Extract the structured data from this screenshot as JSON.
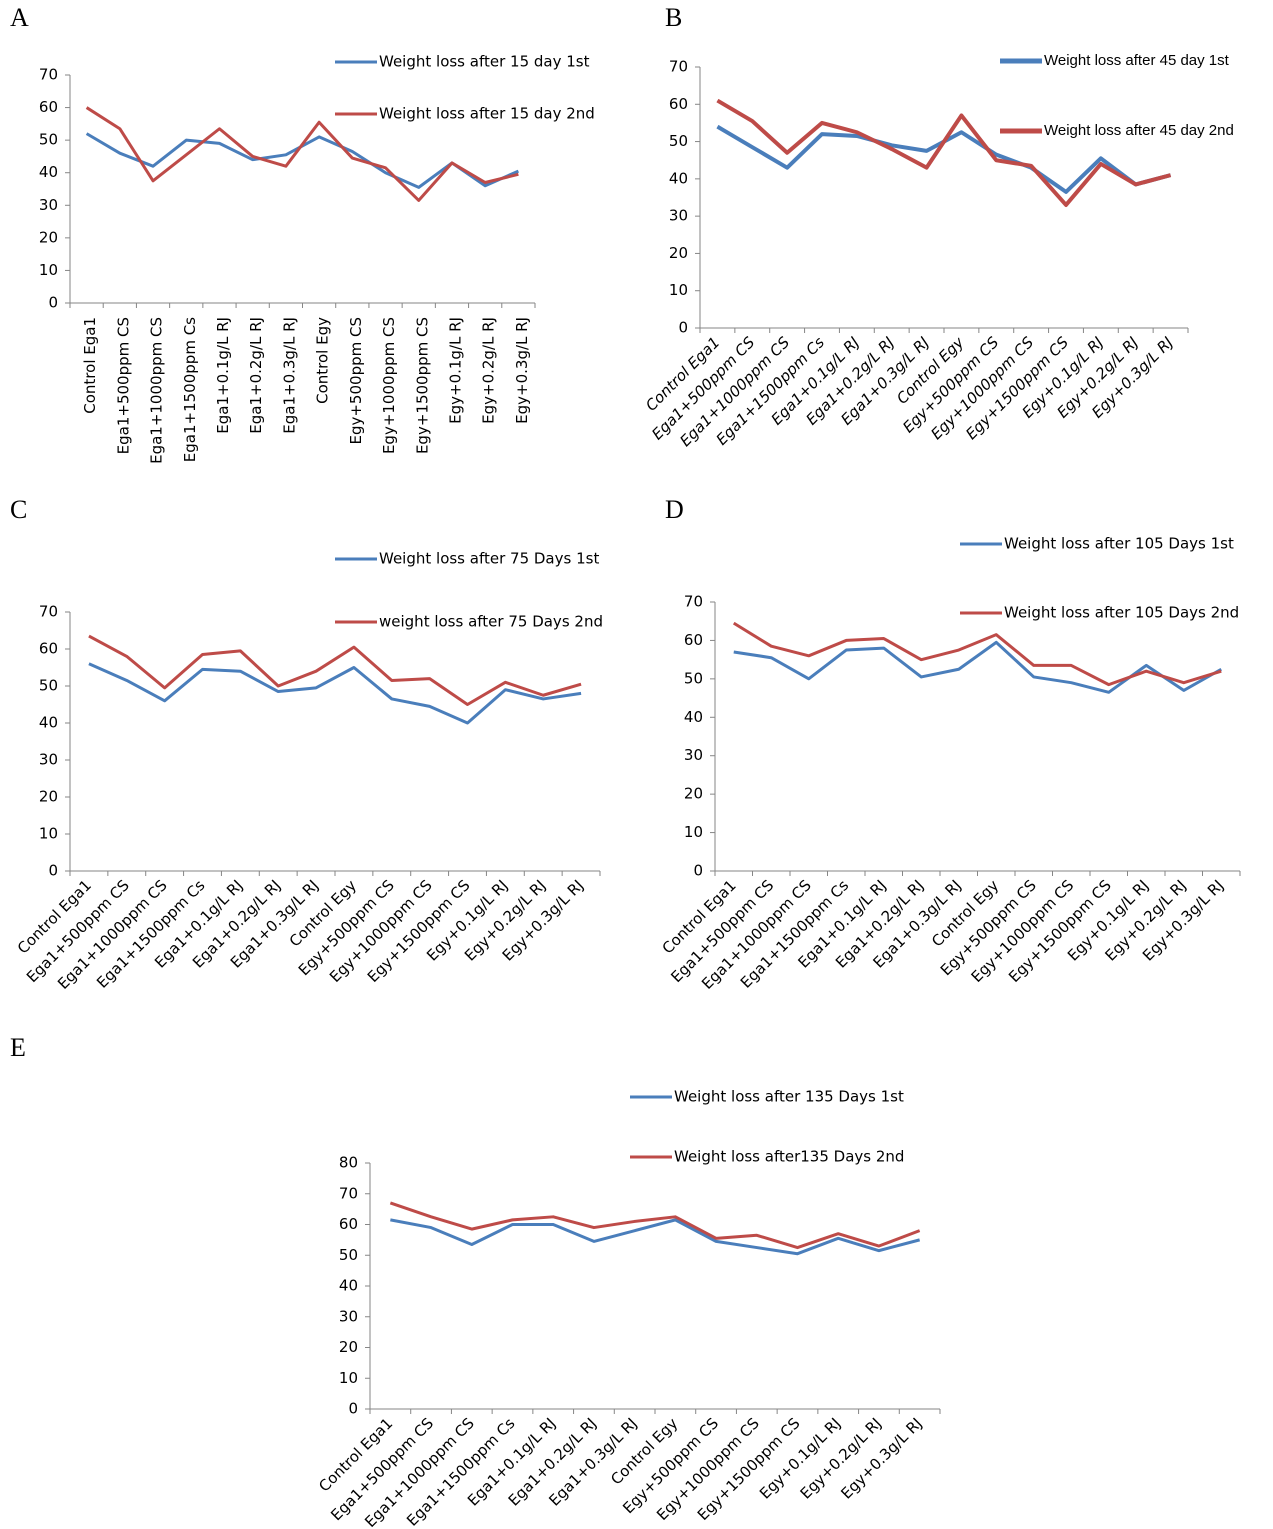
{
  "chart_data": [
    {
      "type": "line",
      "panel": "A",
      "categories": [
        "Control Ega1",
        "Ega1+500ppm CS",
        "Ega1+1000ppm CS",
        "Ega1+1500ppm Cs",
        "Ega1+0.1g/L RJ",
        "Ega1+0.2g/L RJ",
        "Ega1+0.3g/L RJ",
        "Control Egy",
        "Egy+500ppm CS",
        "Egy+1000ppm CS",
        "Egy+1500ppm CS",
        "Egy+0.1g/L RJ",
        "Egy+0.2g/L RJ",
        "Egy+0.3g/L RJ"
      ],
      "series": [
        {
          "name": "Weight loss after 15 day 1st",
          "color": "#4a7ebb",
          "values": [
            52,
            46,
            42,
            50,
            49,
            44,
            45.5,
            51,
            46.5,
            40,
            35.5,
            43,
            36,
            40.5
          ]
        },
        {
          "name": "Weight loss after 15 day 2nd",
          "color": "#be4b48",
          "values": [
            60,
            53.5,
            37.5,
            45.5,
            53.5,
            45,
            42,
            55.5,
            44.5,
            41.5,
            31.5,
            43,
            37,
            39.5
          ]
        }
      ],
      "ylim": [
        0,
        70
      ],
      "yticks": [
        0,
        10,
        20,
        30,
        40,
        50,
        60,
        70
      ]
    },
    {
      "type": "line",
      "panel": "B",
      "categories": [
        "Control Ega1",
        "Ega1+500ppm CS",
        "Ega1+1000ppm CS",
        "Ega1+1500ppm Cs",
        "Ega1+0.1g/L RJ",
        "Ega1+0.2g/L RJ",
        "Ega1+0.3g/L RJ",
        "Control Egy",
        "Egy+500ppm CS",
        "Egy+1000ppm CS",
        "Egy+1500ppm CS",
        "Egy+0.1g/L RJ",
        "Egy+0.2g/L RJ",
        "Egy+0.3g/L RJ"
      ],
      "series": [
        {
          "name": "Weight loss after 45 day 1st",
          "color": "#4a7ebb",
          "values": [
            54,
            48.5,
            43,
            52,
            51.5,
            49,
            47.5,
            52.5,
            46.5,
            43,
            36.5,
            45.5,
            38.5,
            41
          ]
        },
        {
          "name": "Weight loss after 45 day 2nd",
          "color": "#be4b48",
          "values": [
            61,
            55.5,
            47,
            55,
            52.5,
            48,
            43,
            57,
            45,
            43.5,
            33,
            44,
            38.5,
            41
          ]
        }
      ],
      "ylim": [
        0,
        70
      ],
      "yticks": [
        0,
        10,
        20,
        30,
        40,
        50,
        60,
        70
      ]
    },
    {
      "type": "line",
      "panel": "C",
      "categories": [
        "Control Ega1",
        "Ega1+500ppm CS",
        "Ega1+1000ppm CS",
        "Ega1+1500ppm Cs",
        "Ega1+0.1g/L RJ",
        "Ega1+0.2g/L RJ",
        "Ega1+0.3g/L RJ",
        "Control Egy",
        "Egy+500ppm CS",
        "Egy+1000ppm CS",
        "Egy+1500ppm CS",
        "Egy+0.1g/L RJ",
        "Egy+0.2g/L RJ",
        "Egy+0.3g/L RJ"
      ],
      "series": [
        {
          "name": "Weight loss after 75 Days 1st",
          "color": "#4a7ebb",
          "values": [
            56,
            51.5,
            46,
            54.5,
            54,
            48.5,
            49.5,
            55,
            46.5,
            44.5,
            40,
            49,
            46.5,
            48
          ]
        },
        {
          "name": "weight loss after 75 Days 2nd",
          "color": "#be4b48",
          "values": [
            63.5,
            58,
            49.5,
            58.5,
            59.5,
            50,
            54,
            60.5,
            51.5,
            52,
            45,
            51,
            47.5,
            50.5
          ]
        }
      ],
      "ylim": [
        0,
        70
      ],
      "yticks": [
        0,
        10,
        20,
        30,
        40,
        50,
        60,
        70
      ]
    },
    {
      "type": "line",
      "panel": "D",
      "categories": [
        "Control Ega1",
        "Ega1+500ppm CS",
        "Ega1+1000ppm CS",
        "Ega1+1500ppm Cs",
        "Ega1+0.1g/L RJ",
        "Ega1+0.2g/L RJ",
        "Ega1+0.3g/L RJ",
        "Control Egy",
        "Egy+500ppm CS",
        "Egy+1000ppm CS",
        "Egy+1500ppm CS",
        "Egy+0.1g/L RJ",
        "Egy+0.2g/L RJ",
        "Egy+0.3g/L RJ"
      ],
      "series": [
        {
          "name": "Weight loss after 105 Days 1st",
          "color": "#4a7ebb",
          "values": [
            57,
            55.5,
            50,
            57.5,
            58,
            50.5,
            52.5,
            59.5,
            50.5,
            49,
            46.5,
            53.5,
            47,
            52.5
          ]
        },
        {
          "name": "Weight loss after 105 Days 2nd",
          "color": "#be4b48",
          "values": [
            64.5,
            58.5,
            56,
            60,
            60.5,
            55,
            57.5,
            61.5,
            53.5,
            53.5,
            48.5,
            52,
            49,
            52
          ]
        }
      ],
      "ylim": [
        0,
        70
      ],
      "yticks": [
        0,
        10,
        20,
        30,
        40,
        50,
        60,
        70
      ]
    },
    {
      "type": "line",
      "panel": "E",
      "categories": [
        "Control Ega1",
        "Ega1+500ppm CS",
        "Ega1+1000ppm CS",
        "Ega1+1500ppm Cs",
        "Ega1+0.1g/L RJ",
        "Ega1+0.2g/L RJ",
        "Ega1+0.3g/L RJ",
        "Control Egy",
        "Egy+500ppm CS",
        "Egy+1000ppm CS",
        "Egy+1500ppm CS",
        "Egy+0.1g/L RJ",
        "Egy+0.2g/L RJ",
        "Egy+0.3g/L RJ"
      ],
      "series": [
        {
          "name": "Weight loss after 135 Days 1st",
          "color": "#4a7ebb",
          "values": [
            61.5,
            59,
            53.5,
            60,
            60,
            54.5,
            58,
            61.5,
            54.5,
            52.5,
            50.5,
            55.5,
            51.5,
            55
          ]
        },
        {
          "name": "Weight loss after135 Days 2nd",
          "color": "#be4b48",
          "values": [
            67,
            62.5,
            58.5,
            61.5,
            62.5,
            59,
            61,
            62.5,
            55.5,
            56.5,
            52.5,
            57,
            53,
            58
          ]
        }
      ],
      "ylim": [
        0,
        80
      ],
      "yticks": [
        0,
        10,
        20,
        30,
        40,
        50,
        60,
        70,
        80
      ]
    }
  ]
}
